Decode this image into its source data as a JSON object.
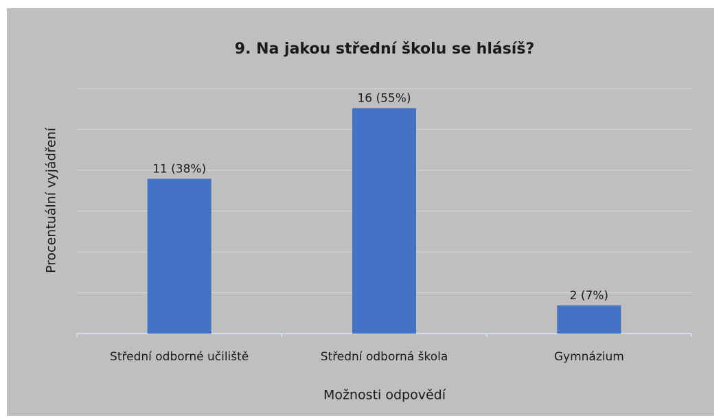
{
  "chart_data": {
    "type": "bar",
    "title": "9. Na jakou střední školu se hlásíš?",
    "x_label": "Možnosti odpovědí",
    "y_label": "Procentuální vyjádření",
    "categories": [
      "Střední odborné učiliště",
      "Střední odborná škola",
      "Gymnázium"
    ],
    "values": [
      37.9,
      55.2,
      6.9
    ],
    "value_labels": [
      "11 (38%)",
      "16 (55%)",
      "2 (7%)"
    ],
    "color": "#4472c4",
    "ylim": [
      0,
      60
    ],
    "yticks": [
      0,
      10,
      20,
      30,
      40,
      50,
      60
    ],
    "grid": true
  }
}
